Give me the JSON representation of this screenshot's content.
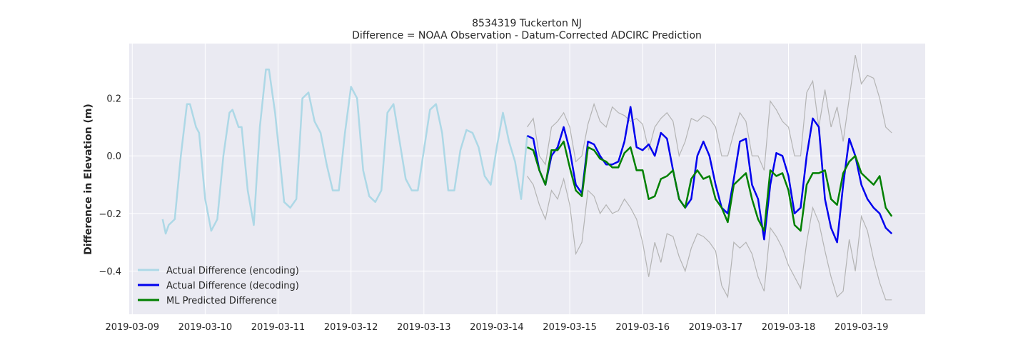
{
  "chart_data": {
    "type": "line",
    "title": "8534319 Tuckerton NJ",
    "subtitle": "Difference = NOAA Observation - Datum-Corrected ADCIRC Prediction",
    "xlabel": "",
    "ylabel": "Difference in Elevation (m)",
    "xlim": [
      "2019-03-08T23:00",
      "2019-03-19T21:00"
    ],
    "ylim": [
      -0.55,
      0.39
    ],
    "x_ticks": [
      "2019-03-09",
      "2019-03-10",
      "2019-03-11",
      "2019-03-12",
      "2019-03-13",
      "2019-03-14",
      "2019-03-15",
      "2019-03-16",
      "2019-03-17",
      "2019-03-18",
      "2019-03-19"
    ],
    "y_ticks": [
      -0.4,
      -0.2,
      0.0,
      0.2
    ],
    "y_tick_labels": [
      "−0.4",
      "−0.2",
      "0.0",
      "0.2"
    ],
    "grid": true,
    "legend_position": "lower-left",
    "colors": {
      "background": "#eaeaf2",
      "grid": "#ffffff",
      "encoding": "#add8e6",
      "decoding": "#0000ee",
      "predicted": "#008000",
      "bounds": "#b4b4b4"
    },
    "series": [
      {
        "name": "Actual Difference (encoding)",
        "x": [
          "2019-03-09T10:00",
          "2019-03-09T11:00",
          "2019-03-09T12:00",
          "2019-03-09T14:00",
          "2019-03-09T16:00",
          "2019-03-09T18:00",
          "2019-03-09T19:00",
          "2019-03-09T21:00",
          "2019-03-09T22:00",
          "2019-03-10T00:00",
          "2019-03-10T02:00",
          "2019-03-10T04:00",
          "2019-03-10T06:00",
          "2019-03-10T08:00",
          "2019-03-10T09:00",
          "2019-03-10T11:00",
          "2019-03-10T12:00",
          "2019-03-10T14:00",
          "2019-03-10T16:00",
          "2019-03-10T18:00",
          "2019-03-10T20:00",
          "2019-03-10T21:00",
          "2019-03-10T23:00",
          "2019-03-11T00:00",
          "2019-03-11T02:00",
          "2019-03-11T04:00",
          "2019-03-11T06:00",
          "2019-03-11T08:00",
          "2019-03-11T10:00",
          "2019-03-11T12:00",
          "2019-03-11T14:00",
          "2019-03-11T16:00",
          "2019-03-11T18:00",
          "2019-03-11T20:00",
          "2019-03-11T22:00",
          "2019-03-12T00:00",
          "2019-03-12T02:00",
          "2019-03-12T04:00",
          "2019-03-12T06:00",
          "2019-03-12T08:00",
          "2019-03-12T10:00",
          "2019-03-12T12:00",
          "2019-03-12T14:00",
          "2019-03-12T16:00",
          "2019-03-12T18:00",
          "2019-03-12T20:00",
          "2019-03-12T22:00",
          "2019-03-13T00:00",
          "2019-03-13T02:00",
          "2019-03-13T04:00",
          "2019-03-13T06:00",
          "2019-03-13T08:00",
          "2019-03-13T10:00",
          "2019-03-13T12:00",
          "2019-03-13T14:00",
          "2019-03-13T16:00",
          "2019-03-13T18:00",
          "2019-03-13T20:00",
          "2019-03-13T22:00",
          "2019-03-14T00:00",
          "2019-03-14T02:00",
          "2019-03-14T04:00",
          "2019-03-14T06:00",
          "2019-03-14T08:00",
          "2019-03-14T10:00"
        ],
        "values": [
          -0.22,
          -0.27,
          -0.24,
          -0.22,
          0.0,
          0.18,
          0.18,
          0.1,
          0.08,
          -0.15,
          -0.26,
          -0.22,
          0.0,
          0.15,
          0.16,
          0.1,
          0.1,
          -0.12,
          -0.24,
          0.1,
          0.3,
          0.3,
          0.15,
          0.05,
          -0.16,
          -0.18,
          -0.15,
          0.2,
          0.22,
          0.12,
          0.08,
          -0.03,
          -0.12,
          -0.12,
          0.08,
          0.24,
          0.2,
          -0.05,
          -0.14,
          -0.16,
          -0.12,
          0.15,
          0.18,
          0.05,
          -0.08,
          -0.12,
          -0.12,
          0.02,
          0.16,
          0.18,
          0.08,
          -0.12,
          -0.12,
          0.02,
          0.09,
          0.08,
          0.03,
          -0.07,
          -0.1,
          0.03,
          0.15,
          0.05,
          -0.02,
          -0.15,
          0.07
        ]
      },
      {
        "name": "Actual Difference (decoding)",
        "x": [
          "2019-03-14T10:00",
          "2019-03-14T12:00",
          "2019-03-14T14:00",
          "2019-03-14T16:00",
          "2019-03-14T18:00",
          "2019-03-14T20:00",
          "2019-03-14T22:00",
          "2019-03-15T00:00",
          "2019-03-15T02:00",
          "2019-03-15T04:00",
          "2019-03-15T06:00",
          "2019-03-15T08:00",
          "2019-03-15T10:00",
          "2019-03-15T12:00",
          "2019-03-15T14:00",
          "2019-03-15T16:00",
          "2019-03-15T18:00",
          "2019-03-15T20:00",
          "2019-03-15T22:00",
          "2019-03-16T00:00",
          "2019-03-16T02:00",
          "2019-03-16T04:00",
          "2019-03-16T06:00",
          "2019-03-16T08:00",
          "2019-03-16T10:00",
          "2019-03-16T12:00",
          "2019-03-16T14:00",
          "2019-03-16T16:00",
          "2019-03-16T18:00",
          "2019-03-16T20:00",
          "2019-03-16T22:00",
          "2019-03-17T00:00",
          "2019-03-17T02:00",
          "2019-03-17T04:00",
          "2019-03-17T06:00",
          "2019-03-17T08:00",
          "2019-03-17T10:00",
          "2019-03-17T12:00",
          "2019-03-17T14:00",
          "2019-03-17T16:00",
          "2019-03-17T18:00",
          "2019-03-17T20:00",
          "2019-03-17T22:00",
          "2019-03-18T00:00",
          "2019-03-18T02:00",
          "2019-03-18T04:00",
          "2019-03-18T06:00",
          "2019-03-18T08:00",
          "2019-03-18T10:00",
          "2019-03-18T12:00",
          "2019-03-18T14:00",
          "2019-03-18T16:00",
          "2019-03-18T18:00",
          "2019-03-18T20:00",
          "2019-03-18T22:00",
          "2019-03-19T00:00",
          "2019-03-19T02:00",
          "2019-03-19T04:00",
          "2019-03-19T06:00",
          "2019-03-19T08:00",
          "2019-03-19T10:00"
        ],
        "values": [
          0.07,
          0.06,
          -0.05,
          -0.1,
          0.0,
          0.03,
          0.1,
          0.02,
          -0.1,
          -0.13,
          0.05,
          0.04,
          0.0,
          -0.03,
          -0.03,
          -0.02,
          0.05,
          0.17,
          0.03,
          0.02,
          0.04,
          0.0,
          0.08,
          0.06,
          -0.05,
          -0.15,
          -0.18,
          -0.15,
          0.0,
          0.05,
          0.0,
          -0.1,
          -0.18,
          -0.2,
          -0.08,
          0.05,
          0.06,
          -0.1,
          -0.15,
          -0.29,
          -0.1,
          0.01,
          0.0,
          -0.07,
          -0.2,
          -0.18,
          0.0,
          0.13,
          0.1,
          -0.15,
          -0.25,
          -0.3,
          -0.1,
          0.06,
          0.0,
          -0.1,
          -0.15,
          -0.18,
          -0.2,
          -0.25,
          -0.27
        ]
      },
      {
        "name": "ML Predicted Difference",
        "x": [
          "2019-03-14T10:00",
          "2019-03-14T12:00",
          "2019-03-14T14:00",
          "2019-03-14T16:00",
          "2019-03-14T18:00",
          "2019-03-14T20:00",
          "2019-03-14T22:00",
          "2019-03-15T00:00",
          "2019-03-15T02:00",
          "2019-03-15T04:00",
          "2019-03-15T06:00",
          "2019-03-15T08:00",
          "2019-03-15T10:00",
          "2019-03-15T12:00",
          "2019-03-15T14:00",
          "2019-03-15T16:00",
          "2019-03-15T18:00",
          "2019-03-15T20:00",
          "2019-03-15T22:00",
          "2019-03-16T00:00",
          "2019-03-16T02:00",
          "2019-03-16T04:00",
          "2019-03-16T06:00",
          "2019-03-16T08:00",
          "2019-03-16T10:00",
          "2019-03-16T12:00",
          "2019-03-16T14:00",
          "2019-03-16T16:00",
          "2019-03-16T18:00",
          "2019-03-16T20:00",
          "2019-03-16T22:00",
          "2019-03-17T00:00",
          "2019-03-17T02:00",
          "2019-03-17T04:00",
          "2019-03-17T06:00",
          "2019-03-17T08:00",
          "2019-03-17T10:00",
          "2019-03-17T12:00",
          "2019-03-17T14:00",
          "2019-03-17T16:00",
          "2019-03-17T18:00",
          "2019-03-17T20:00",
          "2019-03-17T22:00",
          "2019-03-18T00:00",
          "2019-03-18T02:00",
          "2019-03-18T04:00",
          "2019-03-18T06:00",
          "2019-03-18T08:00",
          "2019-03-18T10:00",
          "2019-03-18T12:00",
          "2019-03-18T14:00",
          "2019-03-18T16:00",
          "2019-03-18T18:00",
          "2019-03-18T20:00",
          "2019-03-18T22:00",
          "2019-03-19T00:00",
          "2019-03-19T02:00",
          "2019-03-19T04:00",
          "2019-03-19T06:00",
          "2019-03-19T08:00",
          "2019-03-19T10:00"
        ],
        "values": [
          0.03,
          0.02,
          -0.05,
          -0.1,
          0.02,
          0.02,
          0.05,
          -0.04,
          -0.12,
          -0.14,
          0.03,
          0.02,
          -0.01,
          -0.02,
          -0.04,
          -0.04,
          0.01,
          0.03,
          -0.05,
          -0.05,
          -0.15,
          -0.14,
          -0.08,
          -0.07,
          -0.05,
          -0.15,
          -0.18,
          -0.08,
          -0.05,
          -0.08,
          -0.07,
          -0.15,
          -0.18,
          -0.23,
          -0.1,
          -0.08,
          -0.06,
          -0.15,
          -0.22,
          -0.26,
          -0.05,
          -0.07,
          -0.06,
          -0.12,
          -0.24,
          -0.26,
          -0.1,
          -0.06,
          -0.06,
          -0.05,
          -0.15,
          -0.17,
          -0.06,
          -0.02,
          0.0,
          -0.06,
          -0.08,
          -0.1,
          -0.07,
          -0.18,
          -0.21
        ]
      }
    ],
    "bounds": {
      "x": [
        "2019-03-14T10:00",
        "2019-03-14T12:00",
        "2019-03-14T14:00",
        "2019-03-14T16:00",
        "2019-03-14T18:00",
        "2019-03-14T20:00",
        "2019-03-14T22:00",
        "2019-03-15T00:00",
        "2019-03-15T02:00",
        "2019-03-15T04:00",
        "2019-03-15T06:00",
        "2019-03-15T08:00",
        "2019-03-15T10:00",
        "2019-03-15T12:00",
        "2019-03-15T14:00",
        "2019-03-15T16:00",
        "2019-03-15T18:00",
        "2019-03-15T20:00",
        "2019-03-15T22:00",
        "2019-03-16T00:00",
        "2019-03-16T02:00",
        "2019-03-16T04:00",
        "2019-03-16T06:00",
        "2019-03-16T08:00",
        "2019-03-16T10:00",
        "2019-03-16T12:00",
        "2019-03-16T14:00",
        "2019-03-16T16:00",
        "2019-03-16T18:00",
        "2019-03-16T20:00",
        "2019-03-16T22:00",
        "2019-03-17T00:00",
        "2019-03-17T02:00",
        "2019-03-17T04:00",
        "2019-03-17T06:00",
        "2019-03-17T08:00",
        "2019-03-17T10:00",
        "2019-03-17T12:00",
        "2019-03-17T14:00",
        "2019-03-17T16:00",
        "2019-03-17T18:00",
        "2019-03-17T20:00",
        "2019-03-17T22:00",
        "2019-03-18T00:00",
        "2019-03-18T02:00",
        "2019-03-18T04:00",
        "2019-03-18T06:00",
        "2019-03-18T08:00",
        "2019-03-18T10:00",
        "2019-03-18T12:00",
        "2019-03-18T14:00",
        "2019-03-18T16:00",
        "2019-03-18T18:00",
        "2019-03-18T20:00",
        "2019-03-18T22:00",
        "2019-03-19T00:00",
        "2019-03-19T02:00",
        "2019-03-19T04:00",
        "2019-03-19T06:00",
        "2019-03-19T08:00",
        "2019-03-19T10:00"
      ],
      "upper": [
        0.1,
        0.13,
        0.0,
        -0.03,
        0.1,
        0.12,
        0.15,
        0.1,
        -0.02,
        0.0,
        0.11,
        0.18,
        0.12,
        0.1,
        0.17,
        0.15,
        0.14,
        0.12,
        0.13,
        0.11,
        0.02,
        0.1,
        0.13,
        0.15,
        0.12,
        0.0,
        0.05,
        0.13,
        0.12,
        0.14,
        0.13,
        0.1,
        0.0,
        0.0,
        0.08,
        0.15,
        0.12,
        0.0,
        0.0,
        -0.05,
        0.19,
        0.16,
        0.12,
        0.1,
        0.0,
        0.0,
        0.22,
        0.26,
        0.1,
        0.23,
        0.1,
        0.17,
        0.05,
        0.2,
        0.35,
        0.25,
        0.28,
        0.27,
        0.2,
        0.1,
        0.08
      ],
      "lower": [
        -0.07,
        -0.1,
        -0.17,
        -0.22,
        -0.12,
        -0.15,
        -0.08,
        -0.17,
        -0.34,
        -0.3,
        -0.12,
        -0.14,
        -0.2,
        -0.17,
        -0.2,
        -0.19,
        -0.15,
        -0.18,
        -0.22,
        -0.3,
        -0.42,
        -0.3,
        -0.37,
        -0.27,
        -0.28,
        -0.35,
        -0.4,
        -0.32,
        -0.27,
        -0.28,
        -0.3,
        -0.33,
        -0.45,
        -0.49,
        -0.3,
        -0.32,
        -0.3,
        -0.34,
        -0.42,
        -0.47,
        -0.25,
        -0.28,
        -0.32,
        -0.38,
        -0.42,
        -0.46,
        -0.3,
        -0.18,
        -0.23,
        -0.33,
        -0.42,
        -0.49,
        -0.47,
        -0.29,
        -0.4,
        -0.21,
        -0.26,
        -0.36,
        -0.44,
        -0.5,
        -0.5
      ]
    }
  }
}
